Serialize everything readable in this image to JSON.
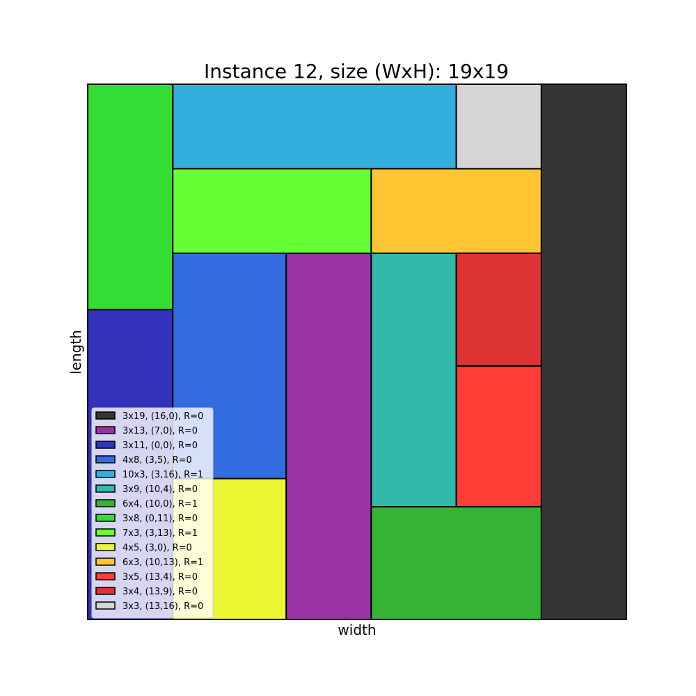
{
  "chart_data": {
    "type": "rectangle-packing",
    "title": "Instance 12, size (WxH): 19x19",
    "xlabel": "width",
    "ylabel": "length",
    "xlim": [
      0,
      19
    ],
    "ylim": [
      0,
      19
    ],
    "grid": false,
    "axis_ticks": false,
    "legend_position": "lower-left",
    "rects": [
      {
        "label": "3x19, (16,0), R=0",
        "x": 16,
        "y": 0,
        "w": 3,
        "h": 19,
        "color": "#353535"
      },
      {
        "label": "3x13, (7,0), R=0",
        "x": 7,
        "y": 0,
        "w": 3,
        "h": 13,
        "color": "#9933a6"
      },
      {
        "label": "3x11, (0,0), R=0",
        "x": 0,
        "y": 0,
        "w": 3,
        "h": 11,
        "color": "#3333bd"
      },
      {
        "label": "4x8, (3,5), R=0",
        "x": 3,
        "y": 5,
        "w": 4,
        "h": 8,
        "color": "#336ce2"
      },
      {
        "label": "10x3, (3,16), R=1",
        "x": 3,
        "y": 16,
        "w": 10,
        "h": 3,
        "color": "#33afdd"
      },
      {
        "label": "3x9, (10,4), R=0",
        "x": 10,
        "y": 4,
        "w": 3,
        "h": 9,
        "color": "#33b9aa"
      },
      {
        "label": "6x4, (10,0), R=1",
        "x": 10,
        "y": 0,
        "w": 6,
        "h": 4,
        "color": "#35b335"
      },
      {
        "label": "3x8, (0,11), R=0",
        "x": 0,
        "y": 11,
        "w": 3,
        "h": 8,
        "color": "#33dd33"
      },
      {
        "label": "7x3, (3,13), R=1",
        "x": 3,
        "y": 13,
        "w": 7,
        "h": 3,
        "color": "#66ff33"
      },
      {
        "label": "4x5, (3,0), R=0",
        "x": 3,
        "y": 0,
        "w": 4,
        "h": 5,
        "color": "#ecf733"
      },
      {
        "label": "6x3, (10,13), R=1",
        "x": 10,
        "y": 13,
        "w": 6,
        "h": 3,
        "color": "#ffc533"
      },
      {
        "label": "3x5, (13,4), R=0",
        "x": 13,
        "y": 4,
        "w": 3,
        "h": 5,
        "color": "#ff3c35"
      },
      {
        "label": "3x4, (13,9), R=0",
        "x": 13,
        "y": 9,
        "w": 3,
        "h": 4,
        "color": "#dd3333"
      },
      {
        "label": "3x3, (13,16), R=0",
        "x": 13,
        "y": 16,
        "w": 3,
        "h": 3,
        "color": "#d5d5d5"
      }
    ]
  }
}
